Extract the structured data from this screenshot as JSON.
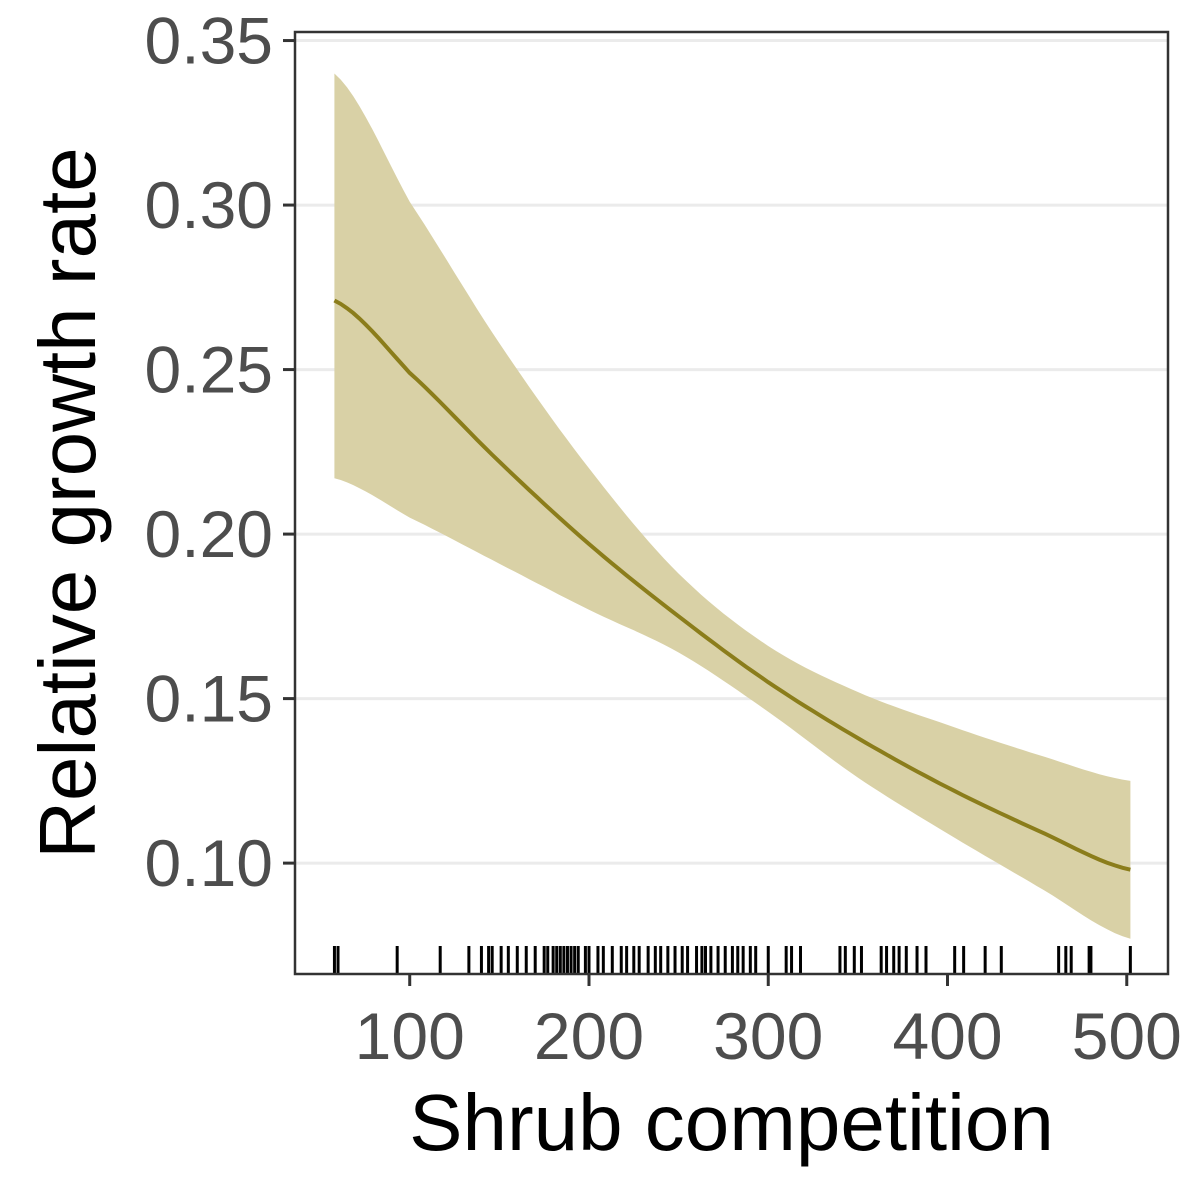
{
  "chart_data": {
    "type": "line",
    "title": "",
    "xlabel": "Shrub competition",
    "ylabel": "Relative growth rate",
    "xlim": [
      36,
      523
    ],
    "ylim": [
      0.0663,
      0.3526
    ],
    "x_ticks": [
      100,
      200,
      300,
      400,
      500
    ],
    "x_tick_labels": [
      "100",
      "200",
      "300",
      "400",
      "500"
    ],
    "y_ticks": [
      0.1,
      0.15,
      0.2,
      0.25,
      0.3,
      0.35
    ],
    "y_tick_labels": [
      "0.10",
      "0.15",
      "0.20",
      "0.25",
      "0.30",
      "0.35"
    ],
    "grid": {
      "major_y": true,
      "major_x": false
    },
    "legend": "none",
    "colors": {
      "line": "#8b7d1b",
      "ribbon": "#d9d1a6",
      "grid": "#ebebeb",
      "panel_border": "#333333",
      "rug": "#000000"
    },
    "series": [
      {
        "x": [
          58,
          100,
          150,
          200,
          250,
          300,
          350,
          400,
          450,
          502
        ],
        "y": [
          0.271,
          0.249,
          0.222,
          0.197,
          0.175,
          0.155,
          0.138,
          0.123,
          0.11,
          0.098
        ],
        "lower": [
          0.217,
          0.205,
          0.191,
          0.177,
          0.164,
          0.146,
          0.126,
          0.109,
          0.093,
          0.077
        ],
        "upper": [
          0.34,
          0.301,
          0.258,
          0.22,
          0.188,
          0.166,
          0.152,
          0.142,
          0.133,
          0.125
        ]
      }
    ],
    "rug_x": [
      58,
      60,
      93,
      117,
      133,
      140,
      144,
      146,
      151,
      155,
      160,
      165,
      170,
      175,
      177,
      180,
      182,
      184,
      186,
      188,
      190,
      192,
      194,
      198,
      200,
      205,
      208,
      213,
      218,
      221,
      225,
      228,
      233,
      237,
      240,
      244,
      248,
      252,
      255,
      260,
      263,
      265,
      268,
      272,
      276,
      280,
      283,
      286,
      290,
      293,
      300,
      310,
      313,
      318,
      340,
      343,
      348,
      352,
      363,
      366,
      370,
      373,
      377,
      383,
      388,
      404,
      409,
      421,
      430,
      462,
      466,
      469,
      479,
      480,
      502
    ]
  }
}
